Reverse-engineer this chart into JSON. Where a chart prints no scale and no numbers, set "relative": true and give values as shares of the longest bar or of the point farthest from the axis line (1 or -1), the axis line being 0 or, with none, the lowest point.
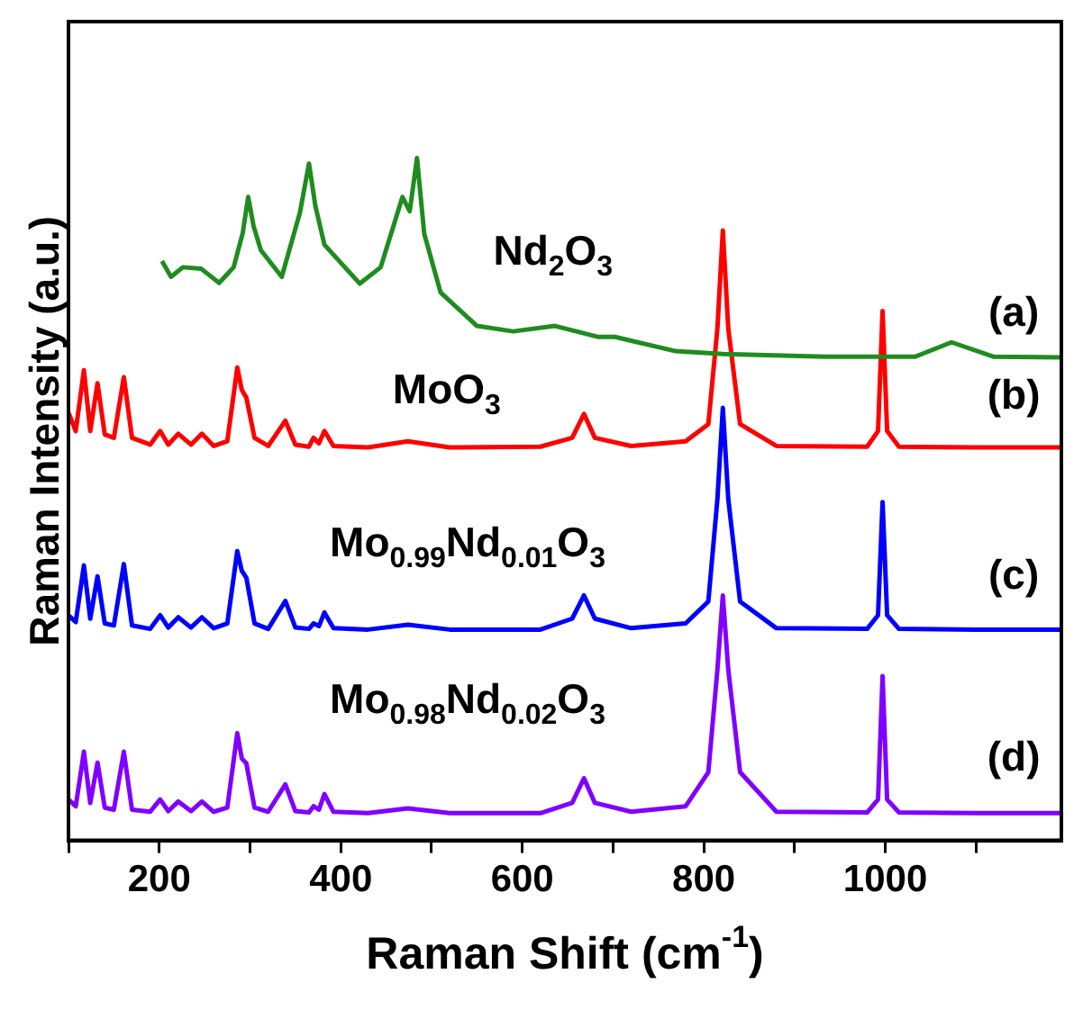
{
  "chart_data": {
    "type": "line",
    "relative": true,
    "xlabel": "Raman Shift (cm$^{-1}$)",
    "ylabel": "Raman Intensity (a.u.)",
    "xlim": [
      100,
      1194
    ],
    "xticks": [
      {
        "value": 100,
        "label": null
      },
      200,
      {
        "value": 300,
        "label": null
      },
      400,
      {
        "value": 500,
        "label": null
      },
      600,
      {
        "value": 700,
        "label": null
      },
      800,
      {
        "value": 900,
        "label": null
      },
      1000,
      {
        "value": 1100,
        "label": null
      }
    ],
    "grid": false,
    "legend": false,
    "annotations": [
      "(a)",
      "(b)",
      "(c)",
      "(d)"
    ],
    "series": [
      {
        "name": "Nd$_{2}$O$_{3}$",
        "color": "#1f8c1f",
        "x": [
          203,
          213,
          226,
          246,
          266,
          282,
          292,
          298,
          304,
          312,
          335,
          355,
          365,
          372,
          382,
          421,
          444,
          468,
          476,
          484,
          492,
          510,
          550,
          590,
          636,
          683,
          702,
          769,
          821,
          934,
          1033,
          1073,
          1119,
          1194
        ],
        "values": [
          0.849,
          0.826,
          0.84,
          0.838,
          0.817,
          0.84,
          0.89,
          0.943,
          0.9,
          0.865,
          0.826,
          0.92,
          0.992,
          0.93,
          0.873,
          0.816,
          0.84,
          0.943,
          0.922,
          1.0,
          0.889,
          0.803,
          0.754,
          0.746,
          0.754,
          0.738,
          0.738,
          0.717,
          0.713,
          0.709,
          0.709,
          0.73,
          0.709,
          0.708
        ]
      },
      {
        "name": "MoO$_{3}$",
        "color": "#ff0000",
        "x": [
          100,
          108,
          117,
          124,
          132,
          140,
          150,
          161,
          170,
          190,
          201,
          210,
          221,
          235,
          247,
          260,
          275,
          286,
          291,
          296,
          305,
          320,
          339,
          350,
          365,
          370,
          376,
          382,
          392,
          430,
          474,
          520,
          620,
          655,
          668,
          680,
          720,
          780,
          805,
          815,
          821,
          827,
          840,
          880,
          980,
          992,
          997,
          1002,
          1015,
          1100,
          1194
        ],
        "values": [
          0.627,
          0.6,
          0.689,
          0.6,
          0.67,
          0.595,
          0.59,
          0.679,
          0.59,
          0.58,
          0.6,
          0.58,
          0.596,
          0.58,
          0.596,
          0.578,
          0.585,
          0.693,
          0.66,
          0.649,
          0.59,
          0.578,
          0.615,
          0.58,
          0.577,
          0.59,
          0.582,
          0.6,
          0.578,
          0.576,
          0.585,
          0.576,
          0.577,
          0.59,
          0.625,
          0.59,
          0.578,
          0.585,
          0.61,
          0.75,
          0.894,
          0.75,
          0.61,
          0.578,
          0.577,
          0.6,
          0.776,
          0.6,
          0.577,
          0.576,
          0.576
        ]
      },
      {
        "name": "Mo$_{0.99}$Nd$_{0.01}$O$_{3}$",
        "color": "#0000ff",
        "x": [
          100,
          108,
          117,
          124,
          132,
          140,
          150,
          161,
          170,
          190,
          201,
          210,
          221,
          235,
          247,
          260,
          275,
          286,
          291,
          296,
          305,
          320,
          339,
          350,
          365,
          370,
          376,
          382,
          392,
          430,
          474,
          520,
          620,
          655,
          668,
          680,
          720,
          780,
          805,
          815,
          821,
          827,
          840,
          880,
          980,
          992,
          997,
          1002,
          1015,
          1100,
          1194
        ],
        "values": [
          0.33,
          0.32,
          0.403,
          0.325,
          0.387,
          0.318,
          0.315,
          0.405,
          0.315,
          0.31,
          0.33,
          0.312,
          0.327,
          0.312,
          0.327,
          0.311,
          0.318,
          0.424,
          0.395,
          0.385,
          0.318,
          0.31,
          0.351,
          0.312,
          0.31,
          0.318,
          0.314,
          0.334,
          0.311,
          0.309,
          0.316,
          0.309,
          0.309,
          0.325,
          0.359,
          0.325,
          0.311,
          0.318,
          0.35,
          0.5,
          0.634,
          0.5,
          0.35,
          0.311,
          0.31,
          0.33,
          0.496,
          0.33,
          0.31,
          0.309,
          0.309
        ]
      },
      {
        "name": "Mo$_{0.98}$Nd$_{0.02}$O$_{3}$",
        "color": "#8000ff",
        "x": [
          100,
          108,
          117,
          124,
          132,
          140,
          150,
          161,
          170,
          190,
          201,
          210,
          221,
          235,
          247,
          260,
          275,
          286,
          291,
          296,
          305,
          320,
          339,
          350,
          365,
          370,
          376,
          382,
          392,
          430,
          474,
          520,
          620,
          655,
          668,
          680,
          720,
          780,
          805,
          815,
          821,
          827,
          840,
          880,
          980,
          992,
          997,
          1002,
          1015,
          1100,
          1194
        ],
        "values": [
          0.06,
          0.05,
          0.13,
          0.055,
          0.114,
          0.048,
          0.045,
          0.13,
          0.045,
          0.042,
          0.06,
          0.043,
          0.057,
          0.043,
          0.057,
          0.042,
          0.048,
          0.157,
          0.12,
          0.113,
          0.048,
          0.042,
          0.082,
          0.043,
          0.041,
          0.05,
          0.045,
          0.068,
          0.042,
          0.04,
          0.047,
          0.04,
          0.04,
          0.055,
          0.091,
          0.055,
          0.042,
          0.05,
          0.1,
          0.25,
          0.359,
          0.25,
          0.1,
          0.042,
          0.041,
          0.06,
          0.241,
          0.06,
          0.041,
          0.04,
          0.04
        ]
      }
    ]
  }
}
